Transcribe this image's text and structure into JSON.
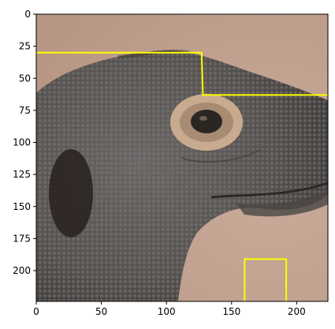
{
  "chart_data": {
    "type": "image",
    "title": "",
    "xlabel": "",
    "ylabel": "",
    "xlim": [
      0,
      224
    ],
    "ylim": [
      224,
      0
    ],
    "xticks": [
      0,
      50,
      100,
      150,
      200
    ],
    "yticks": [
      0,
      25,
      50,
      75,
      100,
      125,
      150,
      175,
      200
    ],
    "xtick_labels": [
      "0",
      "50",
      "100",
      "150",
      "200"
    ],
    "ytick_labels": [
      "0",
      "25",
      "50",
      "75",
      "100",
      "125",
      "150",
      "175",
      "200"
    ],
    "image": {
      "subject": "komodo dragon head in profile",
      "background_color": "#c4a492",
      "skin_color": "#5d5a59",
      "eye_ring_color": "#c8ab8e",
      "eye_color": "#2b2622"
    },
    "overlay": {
      "line_color": "#ffff00",
      "outline_points": [
        [
          0,
          30
        ],
        [
          127,
          30
        ],
        [
          128,
          63
        ],
        [
          224,
          63
        ]
      ],
      "box_points": [
        [
          160,
          224
        ],
        [
          160,
          191
        ],
        [
          192,
          191
        ],
        [
          192,
          224
        ]
      ]
    }
  }
}
